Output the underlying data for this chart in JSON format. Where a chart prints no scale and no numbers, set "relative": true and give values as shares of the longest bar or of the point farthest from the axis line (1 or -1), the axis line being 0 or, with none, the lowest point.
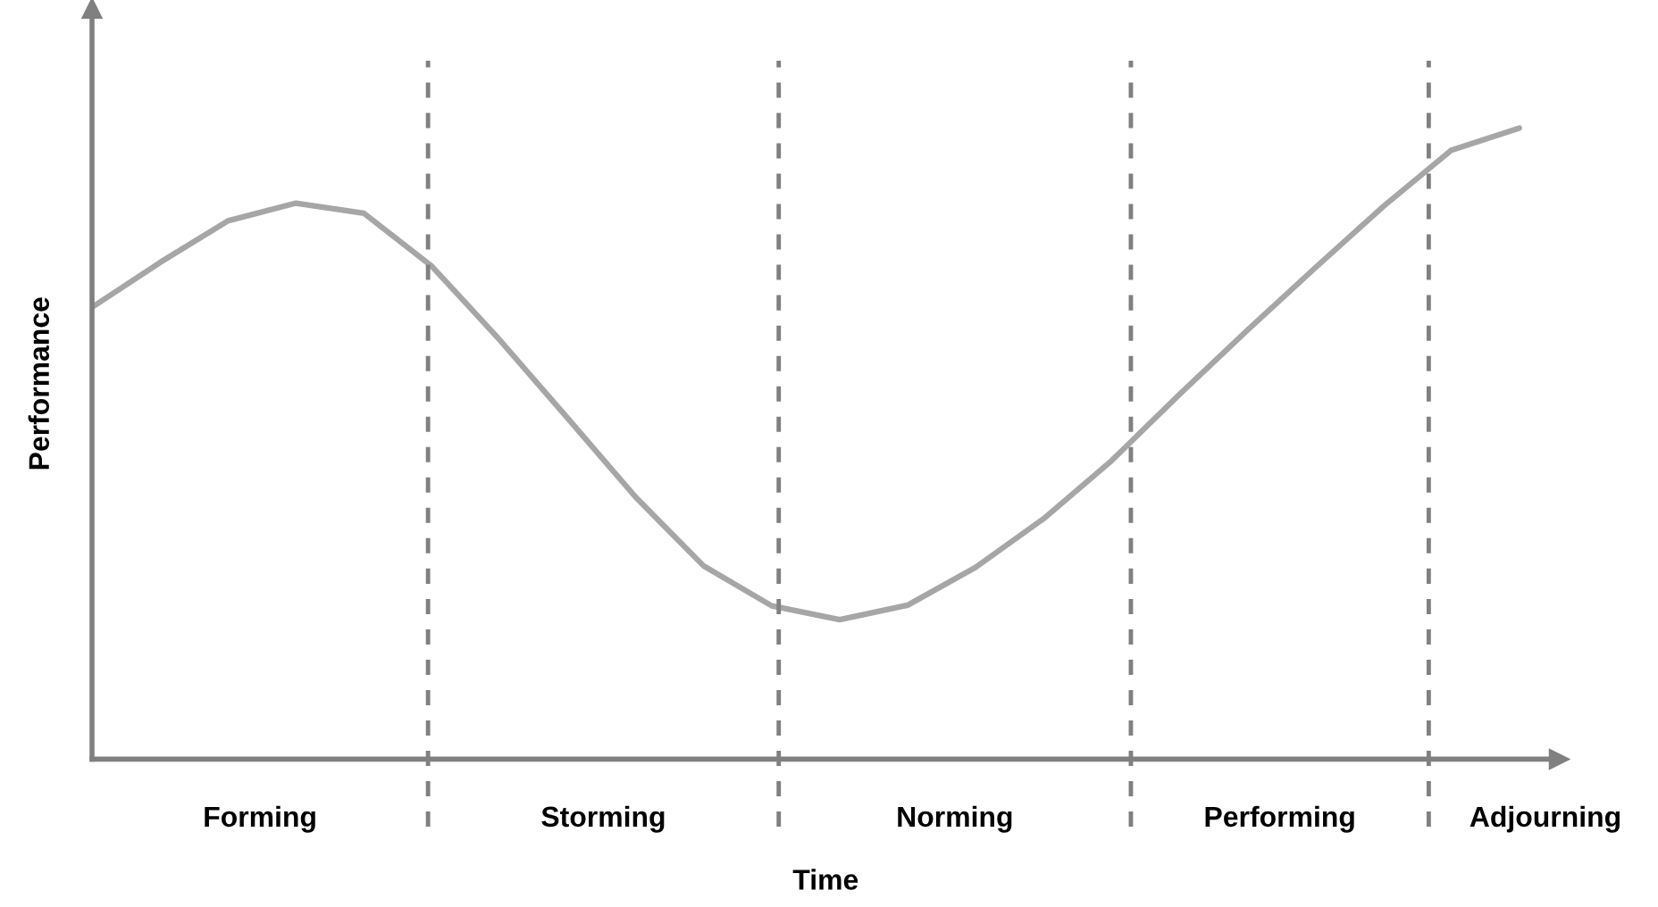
{
  "chart_data": {
    "type": "line",
    "relative": true,
    "xlabel": "Time",
    "ylabel": "Performance",
    "categories": [
      null,
      null,
      null,
      null,
      null,
      null,
      null,
      null,
      null,
      null,
      null,
      null,
      null,
      null,
      null,
      null,
      null,
      null,
      null,
      null,
      null,
      null
    ],
    "series": [
      {
        "color": "#a6a6a6",
        "values": [
          0.716,
          0.787,
          0.853,
          0.881,
          0.865,
          0.781,
          0.664,
          0.54,
          0.415,
          0.306,
          0.243,
          0.221,
          0.244,
          0.304,
          0.381,
          0.473,
          0.578,
          0.68,
          0.779,
          0.876,
          0.965,
          1.0
        ]
      }
    ],
    "annotations": [
      "Forming",
      "Storming",
      "Norming",
      "Performing",
      "Adjourning"
    ],
    "marker": "none",
    "line_style": "solid"
  }
}
